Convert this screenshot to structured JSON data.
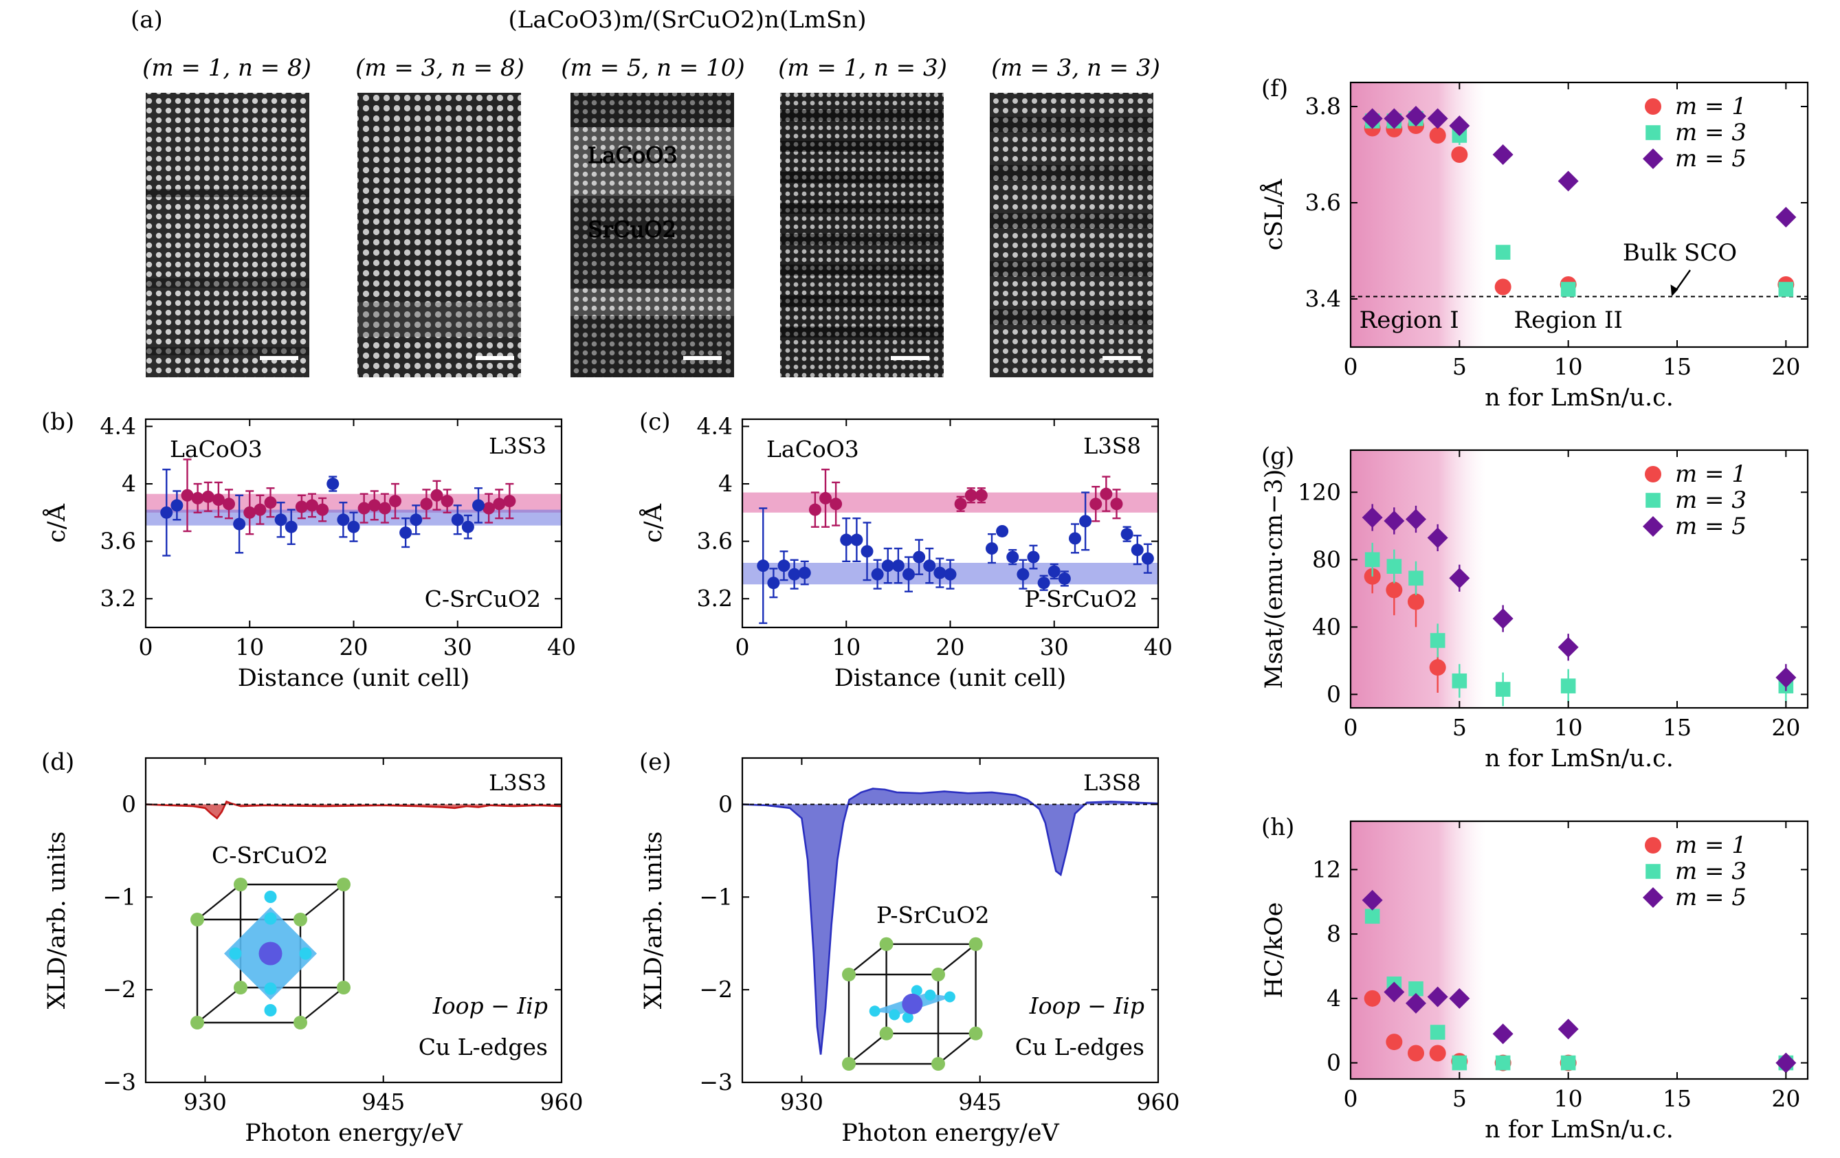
{
  "header": {
    "panel_a_label": "(a)",
    "title": "(LaCoO3)m/(SrCuO2)n(LmSn)"
  },
  "stem_images": [
    {
      "label": "(m = 1, n = 8)"
    },
    {
      "label": "(m = 3, n = 8)"
    },
    {
      "label": "(m = 5, n = 10)",
      "layer_labels": [
        "LaCoO3",
        "SrCuO2"
      ]
    },
    {
      "label": "(m = 1, n = 3)"
    },
    {
      "label": "(m = 3, n = 3)"
    }
  ],
  "colors": {
    "lacoo3": "#b0175f",
    "srcuo2": "#1a2fb8",
    "m1": "#f04848",
    "m3": "#4de0b0",
    "m5": "#6a1496",
    "region_pink": "#e58ab8",
    "xld_red": "#c41818",
    "xld_blue": "#2a2fc0"
  },
  "chart_data": [
    {
      "id": "b",
      "type": "scatter",
      "panel_label": "(b)",
      "tag": "L3S3",
      "xlabel": "Distance (unit cell)",
      "ylabel": "c/Å",
      "xlim": [
        0,
        40
      ],
      "ylim": [
        3.0,
        4.45
      ],
      "xticks": [
        0,
        10,
        20,
        30,
        40
      ],
      "yticks": [
        3.2,
        3.6,
        4.0,
        4.4
      ],
      "bands": [
        {
          "name": "LaCoO3",
          "y1": 3.8,
          "y2": 3.93,
          "color": "#e060a0"
        },
        {
          "name": "C-SrCuO2",
          "y1": 3.71,
          "y2": 3.82,
          "color": "#6a74e0"
        }
      ],
      "series": [
        {
          "name": "LaCoO3",
          "color": "#b0175f",
          "x": [
            4,
            5,
            6,
            7,
            8,
            10,
            11,
            12,
            15,
            16,
            17,
            21,
            22,
            23,
            24,
            27,
            28,
            29,
            33,
            34,
            35
          ],
          "y": [
            3.92,
            3.9,
            3.91,
            3.89,
            3.86,
            3.8,
            3.82,
            3.87,
            3.84,
            3.85,
            3.82,
            3.83,
            3.85,
            3.83,
            3.88,
            3.86,
            3.92,
            3.88,
            3.83,
            3.86,
            3.88
          ],
          "err": [
            0.25,
            0.1,
            0.1,
            0.12,
            0.1,
            0.15,
            0.1,
            0.1,
            0.08,
            0.08,
            0.08,
            0.1,
            0.1,
            0.1,
            0.12,
            0.1,
            0.1,
            0.08,
            0.1,
            0.1,
            0.12
          ]
        },
        {
          "name": "C-SrCuO2",
          "color": "#1a2fb8",
          "x": [
            2,
            3,
            9,
            13,
            14,
            18,
            19,
            20,
            25,
            26,
            30,
            31,
            32
          ],
          "y": [
            3.8,
            3.85,
            3.72,
            3.75,
            3.7,
            4.0,
            3.75,
            3.7,
            3.66,
            3.75,
            3.75,
            3.7,
            3.85
          ],
          "err": [
            0.3,
            0.1,
            0.2,
            0.12,
            0.12,
            0.05,
            0.12,
            0.1,
            0.1,
            0.1,
            0.1,
            0.08,
            0.12
          ]
        }
      ],
      "annotations": [
        {
          "text": "LaCoO3",
          "color": "#b0175f"
        },
        {
          "text": "C-SrCuO2",
          "color": "#1a2fb8"
        }
      ]
    },
    {
      "id": "c",
      "type": "scatter",
      "panel_label": "(c)",
      "tag": "L3S8",
      "xlabel": "Distance (unit cell)",
      "ylabel": "c/Å",
      "xlim": [
        0,
        40
      ],
      "ylim": [
        3.0,
        4.45
      ],
      "xticks": [
        0,
        10,
        20,
        30,
        40
      ],
      "yticks": [
        3.2,
        3.6,
        4.0,
        4.4
      ],
      "bands": [
        {
          "name": "LaCoO3",
          "y1": 3.8,
          "y2": 3.94,
          "color": "#e060a0"
        },
        {
          "name": "P-SrCuO2",
          "y1": 3.3,
          "y2": 3.45,
          "color": "#6a74e0"
        }
      ],
      "series": [
        {
          "name": "LaCoO3",
          "color": "#b0175f",
          "x": [
            7,
            8,
            9,
            21,
            22,
            23,
            34,
            35,
            36
          ],
          "y": [
            3.82,
            3.9,
            3.86,
            3.86,
            3.92,
            3.92,
            3.86,
            3.93,
            3.86
          ],
          "err": [
            0.12,
            0.2,
            0.15,
            0.05,
            0.05,
            0.05,
            0.12,
            0.12,
            0.1
          ]
        },
        {
          "name": "P-SrCuO2",
          "color": "#1a2fb8",
          "x": [
            2,
            3,
            4,
            5,
            6,
            10,
            11,
            12,
            13,
            14,
            15,
            16,
            17,
            18,
            19,
            20,
            24,
            25,
            26,
            27,
            28,
            29,
            30,
            31,
            32,
            33,
            37,
            38,
            39
          ],
          "y": [
            3.43,
            3.31,
            3.43,
            3.37,
            3.38,
            3.61,
            3.61,
            3.53,
            3.37,
            3.43,
            3.43,
            3.37,
            3.49,
            3.43,
            3.38,
            3.37,
            3.55,
            3.67,
            3.49,
            3.37,
            3.49,
            3.31,
            3.39,
            3.34,
            3.62,
            3.74,
            3.65,
            3.54,
            3.48
          ],
          "err": [
            0.4,
            0.1,
            0.1,
            0.1,
            0.08,
            0.15,
            0.15,
            0.2,
            0.1,
            0.12,
            0.12,
            0.12,
            0.12,
            0.12,
            0.1,
            0.1,
            0.1,
            0.02,
            0.05,
            0.1,
            0.08,
            0.05,
            0.05,
            0.05,
            0.1,
            0.2,
            0.05,
            0.1,
            0.1
          ]
        }
      ],
      "annotations": [
        {
          "text": "LaCoO3",
          "color": "#b0175f"
        },
        {
          "text": "P-SrCuO2",
          "color": "#1a2fb8"
        }
      ]
    },
    {
      "id": "d",
      "type": "area",
      "panel_label": "(d)",
      "tag": "L3S3",
      "xlabel": "Photon energy/eV",
      "ylabel": "XLD/arb. units",
      "xlim": [
        925,
        960
      ],
      "ylim": [
        -3.0,
        0.5
      ],
      "xticks": [
        930,
        945,
        960
      ],
      "yticks": [
        0,
        -1,
        -2,
        -3
      ],
      "inset_label": "C-SrCuO2",
      "annotations": [
        "Ioop − Iip",
        "Cu L-edges"
      ],
      "series": [
        {
          "name": "XLD",
          "color": "#c41818",
          "x": [
            925,
            927,
            929,
            930,
            930.5,
            931,
            931.4,
            931.8,
            932.2,
            933,
            935,
            940,
            945,
            948,
            950,
            951,
            952,
            953,
            954,
            956,
            958,
            960
          ],
          "y": [
            0,
            -0.01,
            -0.02,
            -0.04,
            -0.1,
            -0.15,
            -0.08,
            0.03,
            0.01,
            -0.02,
            -0.01,
            -0.02,
            -0.01,
            -0.02,
            -0.03,
            -0.04,
            -0.02,
            -0.03,
            -0.01,
            -0.02,
            -0.01,
            -0.02
          ]
        }
      ]
    },
    {
      "id": "e",
      "type": "area",
      "panel_label": "(e)",
      "tag": "L3S8",
      "xlabel": "Photon energy/eV",
      "ylabel": "XLD/arb. units",
      "xlim": [
        925,
        960
      ],
      "ylim": [
        -3.0,
        0.5
      ],
      "xticks": [
        930,
        945,
        960
      ],
      "yticks": [
        0,
        -1,
        -2,
        -3
      ],
      "inset_label": "P-SrCuO2",
      "annotations": [
        "Ioop − Iip",
        "Cu L-edges"
      ],
      "series": [
        {
          "name": "XLD",
          "color": "#2a2fc0",
          "x": [
            925,
            927,
            929,
            930,
            930.5,
            931,
            931.3,
            931.6,
            932,
            932.5,
            933,
            933.5,
            934,
            935,
            936,
            937,
            938,
            940,
            942,
            944,
            946,
            948,
            949,
            950,
            950.5,
            951,
            951.4,
            951.8,
            952.3,
            953,
            954,
            956,
            958,
            960
          ],
          "y": [
            0,
            -0.01,
            -0.04,
            -0.15,
            -0.6,
            -1.6,
            -2.4,
            -2.7,
            -2.2,
            -1.3,
            -0.6,
            -0.2,
            0.05,
            0.13,
            0.17,
            0.16,
            0.13,
            0.12,
            0.14,
            0.12,
            0.13,
            0.1,
            0.05,
            -0.05,
            -0.2,
            -0.5,
            -0.72,
            -0.76,
            -0.5,
            -0.1,
            0.02,
            0.03,
            0.02,
            0.01
          ]
        }
      ]
    },
    {
      "id": "f",
      "type": "scatter",
      "panel_label": "(f)",
      "xlabel": "n for LmSn/u.c.",
      "ylabel": "cSL/Å",
      "xlim": [
        0,
        21
      ],
      "ylim": [
        3.3,
        3.85
      ],
      "xticks": [
        0,
        5,
        10,
        15,
        20
      ],
      "yticks": [
        3.4,
        3.6,
        3.8
      ],
      "region_labels": [
        "Region I",
        "Region II"
      ],
      "reference": {
        "label": "Bulk SCO",
        "y": 3.405
      },
      "legend": {
        "position": "top-right",
        "entries": [
          "m = 1",
          "m = 3",
          "m = 5"
        ]
      },
      "series": [
        {
          "name": "m = 1",
          "marker": "circle",
          "color": "#f04848",
          "x": [
            1,
            2,
            3,
            4,
            5,
            7,
            10,
            20
          ],
          "y": [
            3.755,
            3.753,
            3.76,
            3.74,
            3.7,
            3.425,
            3.43,
            3.43
          ],
          "err": [
            0.015,
            0.015,
            0.015,
            0.01,
            0.015,
            0.01,
            0.01,
            0.01
          ]
        },
        {
          "name": "m = 3",
          "marker": "square",
          "color": "#4de0b0",
          "x": [
            1,
            2,
            3,
            5,
            7,
            10,
            20
          ],
          "y": [
            3.77,
            3.77,
            3.775,
            3.74,
            3.497,
            3.42,
            3.42
          ],
          "err": [
            0.01,
            0.01,
            0.01,
            0.02,
            0.015,
            0.01,
            0.01
          ]
        },
        {
          "name": "m = 5",
          "marker": "diamond",
          "color": "#6a1496",
          "x": [
            1,
            2,
            3,
            4,
            5,
            7,
            10,
            20
          ],
          "y": [
            3.775,
            3.775,
            3.78,
            3.775,
            3.76,
            3.7,
            3.645,
            3.57
          ],
          "err": [
            0.01,
            0.01,
            0.01,
            0.005,
            0.005,
            0.005,
            0.005,
            0.005
          ]
        }
      ]
    },
    {
      "id": "g",
      "type": "scatter",
      "panel_label": "(g)",
      "xlabel": "n for LmSn/u.c.",
      "ylabel": "Msat/(emu·cm−3)",
      "xlim": [
        0,
        21
      ],
      "ylim": [
        -8,
        145
      ],
      "xticks": [
        0,
        5,
        10,
        15,
        20
      ],
      "yticks": [
        0,
        40,
        80,
        120
      ],
      "legend": {
        "position": "top-right",
        "entries": [
          "m = 1",
          "m = 3",
          "m = 5"
        ]
      },
      "series": [
        {
          "name": "m = 1",
          "marker": "circle",
          "color": "#f04848",
          "x": [
            1,
            2,
            3,
            4
          ],
          "y": [
            70,
            62,
            55,
            16
          ],
          "err": [
            10,
            15,
            15,
            15
          ]
        },
        {
          "name": "m = 3",
          "marker": "square",
          "color": "#4de0b0",
          "x": [
            1,
            2,
            3,
            4,
            5,
            7,
            10,
            20
          ],
          "y": [
            80,
            76,
            69,
            32,
            8,
            3,
            5,
            5
          ],
          "err": [
            10,
            10,
            10,
            10,
            10,
            10,
            10,
            10
          ]
        },
        {
          "name": "m = 5",
          "marker": "diamond",
          "color": "#6a1496",
          "x": [
            1,
            2,
            3,
            4,
            5,
            7,
            10,
            20
          ],
          "y": [
            105,
            103,
            104,
            93,
            69,
            45,
            28,
            10
          ],
          "err": [
            8,
            8,
            8,
            8,
            8,
            8,
            8,
            8
          ]
        }
      ]
    },
    {
      "id": "h",
      "type": "scatter",
      "panel_label": "(h)",
      "xlabel": "n for LmSn/u.c.",
      "ylabel": "HC/kOe",
      "xlim": [
        0,
        21
      ],
      "ylim": [
        -1,
        15
      ],
      "xticks": [
        0,
        5,
        10,
        15,
        20
      ],
      "yticks": [
        0,
        4,
        8,
        12
      ],
      "legend": {
        "position": "top-right",
        "entries": [
          "m = 1",
          "m = 3",
          "m = 5"
        ]
      },
      "series": [
        {
          "name": "m = 1",
          "marker": "circle",
          "color": "#f04848",
          "x": [
            1,
            2,
            3,
            4,
            5,
            7,
            10,
            20
          ],
          "y": [
            4.0,
            1.3,
            0.6,
            0.6,
            0.1,
            0.0,
            0.0,
            0.0
          ],
          "err": [
            0.3,
            0.3,
            0.3,
            0.3,
            0.3,
            0.3,
            0.3,
            0.3
          ]
        },
        {
          "name": "m = 3",
          "marker": "square",
          "color": "#4de0b0",
          "x": [
            1,
            2,
            3,
            4,
            5,
            7,
            10,
            20
          ],
          "y": [
            9.1,
            4.9,
            4.6,
            1.9,
            0.0,
            0.0,
            0.0,
            0.0
          ],
          "err": [
            0.2,
            0.2,
            0.2,
            0.2,
            0.2,
            0.2,
            0.2,
            0.2
          ]
        },
        {
          "name": "m = 5",
          "marker": "diamond",
          "color": "#6a1496",
          "x": [
            1,
            2,
            3,
            4,
            5,
            7,
            10,
            20
          ],
          "y": [
            10.1,
            4.4,
            3.7,
            4.1,
            4.0,
            1.8,
            2.1,
            0.0
          ],
          "err": [
            0.2,
            0.2,
            0.2,
            0.2,
            0.2,
            0.2,
            0.2,
            0.2
          ]
        }
      ]
    }
  ]
}
